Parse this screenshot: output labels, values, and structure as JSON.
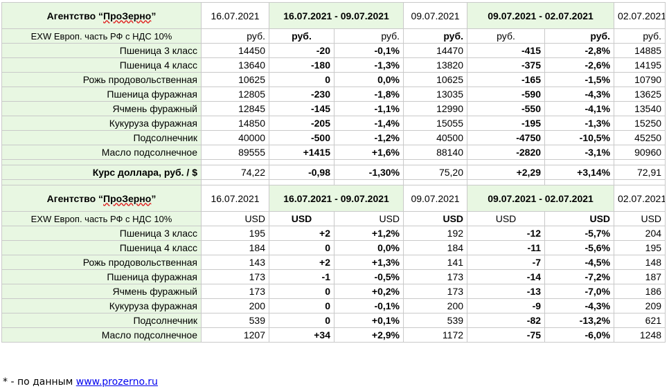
{
  "agency": {
    "prefix": "Агентство “",
    "brand": "ПроЗерно",
    "suffix": "”"
  },
  "table1": {
    "dates": [
      "16.07.2021",
      "16.07.2021 - 09.07.2021",
      "09.07.2021",
      "09.07.2021 - 02.07.2021",
      "02.07.2021"
    ],
    "basis": "EXW Европ. часть РФ с НДС 10%",
    "units": [
      "руб.",
      "руб.",
      "руб.",
      "руб.",
      "руб.",
      "руб.",
      "руб."
    ],
    "rows": [
      {
        "name": "Пшеница 3 класс",
        "v1": "14450",
        "d1": "-20",
        "p1": "-0,1%",
        "v2": "14470",
        "d2": "-415",
        "p2": "-2,8%",
        "v3": "14885"
      },
      {
        "name": "Пшеница 4 класс",
        "v1": "13640",
        "d1": "-180",
        "p1": "-1,3%",
        "v2": "13820",
        "d2": "-375",
        "p2": "-2,6%",
        "v3": "14195"
      },
      {
        "name": "Рожь продовольственная",
        "v1": "10625",
        "d1": "0",
        "p1": "0,0%",
        "v2": "10625",
        "d2": "-165",
        "p2": "-1,5%",
        "v3": "10790"
      },
      {
        "name": "Пшеница фуражная",
        "v1": "12805",
        "d1": "-230",
        "p1": "-1,8%",
        "v2": "13035",
        "d2": "-590",
        "p2": "-4,3%",
        "v3": "13625"
      },
      {
        "name": "Ячмень фуражный",
        "v1": "12845",
        "d1": "-145",
        "p1": "-1,1%",
        "v2": "12990",
        "d2": "-550",
        "p2": "-4,1%",
        "v3": "13540"
      },
      {
        "name": "Кукуруза фуражная",
        "v1": "14850",
        "d1": "-205",
        "p1": "-1,4%",
        "v2": "15055",
        "d2": "-195",
        "p2": "-1,3%",
        "v3": "15250"
      },
      {
        "name": "Подсолнечник",
        "v1": "40000",
        "d1": "-500",
        "p1": "-1,2%",
        "v2": "40500",
        "d2": "-4750",
        "p2": "-10,5%",
        "v3": "45250"
      },
      {
        "name": "Масло подсолнечное",
        "v1": "89555",
        "d1": "+1415",
        "p1": "+1,6%",
        "v2": "88140",
        "d2": "-2820",
        "p2": "-3,1%",
        "v3": "90960"
      }
    ],
    "usd_rate": {
      "name": "Курс доллара, руб. / $",
      "v1": "74,22",
      "d1": "-0,98",
      "p1": "-1,30%",
      "v2": "75,20",
      "d2": "+2,29",
      "p2": "+3,14%",
      "v3": "72,91"
    }
  },
  "table2": {
    "dates": [
      "16.07.2021",
      "16.07.2021 - 09.07.2021",
      "09.07.2021",
      "09.07.2021 - 02.07.2021",
      "02.07.2021"
    ],
    "basis": "EXW Европ. часть РФ с НДС 10%",
    "units": [
      "USD",
      "USD",
      "USD",
      "USD",
      "USD",
      "USD",
      "USD"
    ],
    "rows": [
      {
        "name": "Пшеница 3 класс",
        "v1": "195",
        "d1": "+2",
        "p1": "+1,2%",
        "v2": "192",
        "d2": "-12",
        "p2": "-5,7%",
        "v3": "204"
      },
      {
        "name": "Пшеница 4 класс",
        "v1": "184",
        "d1": "0",
        "p1": "0,0%",
        "v2": "184",
        "d2": "-11",
        "p2": "-5,6%",
        "v3": "195"
      },
      {
        "name": "Рожь продовольственная",
        "v1": "143",
        "d1": "+2",
        "p1": "+1,3%",
        "v2": "141",
        "d2": "-7",
        "p2": "-4,5%",
        "v3": "148"
      },
      {
        "name": "Пшеница фуражная",
        "v1": "173",
        "d1": "-1",
        "p1": "-0,5%",
        "v2": "173",
        "d2": "-14",
        "p2": "-7,2%",
        "v3": "187"
      },
      {
        "name": "Ячмень фуражный",
        "v1": "173",
        "d1": "0",
        "p1": "+0,2%",
        "v2": "173",
        "d2": "-13",
        "p2": "-7,0%",
        "v3": "186"
      },
      {
        "name": "Кукуруза фуражная",
        "v1": "200",
        "d1": "0",
        "p1": "-0,1%",
        "v2": "200",
        "d2": "-9",
        "p2": "-4,3%",
        "v3": "209"
      },
      {
        "name": "Подсолнечник",
        "v1": "539",
        "d1": "0",
        "p1": "+0,1%",
        "v2": "539",
        "d2": "-82",
        "p2": "-13,2%",
        "v3": "621"
      },
      {
        "name": "Масло подсолнечное",
        "v1": "1207",
        "d1": "+34",
        "p1": "+2,9%",
        "v2": "1172",
        "d2": "-75",
        "p2": "-6,0%",
        "v3": "1248"
      }
    ]
  },
  "colors": {
    "negative": "#ff2200",
    "positive": "#14a814",
    "label_bg": "#e8f7e2",
    "link": "#0000ee"
  },
  "footnote": {
    "prefix": "* - по данным ",
    "link": "www.prozerno.ru"
  }
}
